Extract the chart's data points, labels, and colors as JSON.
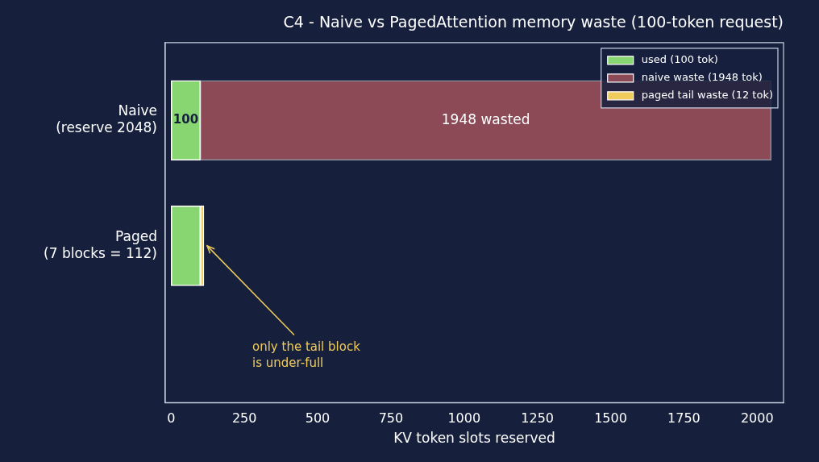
{
  "chart_data": {
    "type": "bar",
    "orientation": "horizontal",
    "stacked": true,
    "title": "C4 - Naive vs PagedAttention memory waste (100-token request)",
    "xlabel": "KV token slots reserved",
    "categories": [
      "Naive\n(reserve 2048)",
      "Paged\n(7 blocks = 112)"
    ],
    "series": [
      {
        "name": "used (100 tok)",
        "color": "#88d672",
        "values": [
          100,
          100
        ],
        "value_labels": [
          "100",
          null
        ]
      },
      {
        "name": "naive waste (1948 tok)",
        "color": "#8b4a56",
        "values": [
          1948,
          null
        ],
        "value_labels": [
          "1948 wasted",
          null
        ]
      },
      {
        "name": "paged tail waste (12 tok)",
        "color": "#f0cc5c",
        "values": [
          null,
          12
        ]
      }
    ],
    "xlim": [
      -20,
      2090
    ],
    "xticks": [
      0,
      250,
      500,
      750,
      1000,
      1250,
      1500,
      1750,
      2000
    ],
    "annotations": [
      "only the tail block\nis under-full"
    ],
    "legend": "top right",
    "grid": false
  }
}
